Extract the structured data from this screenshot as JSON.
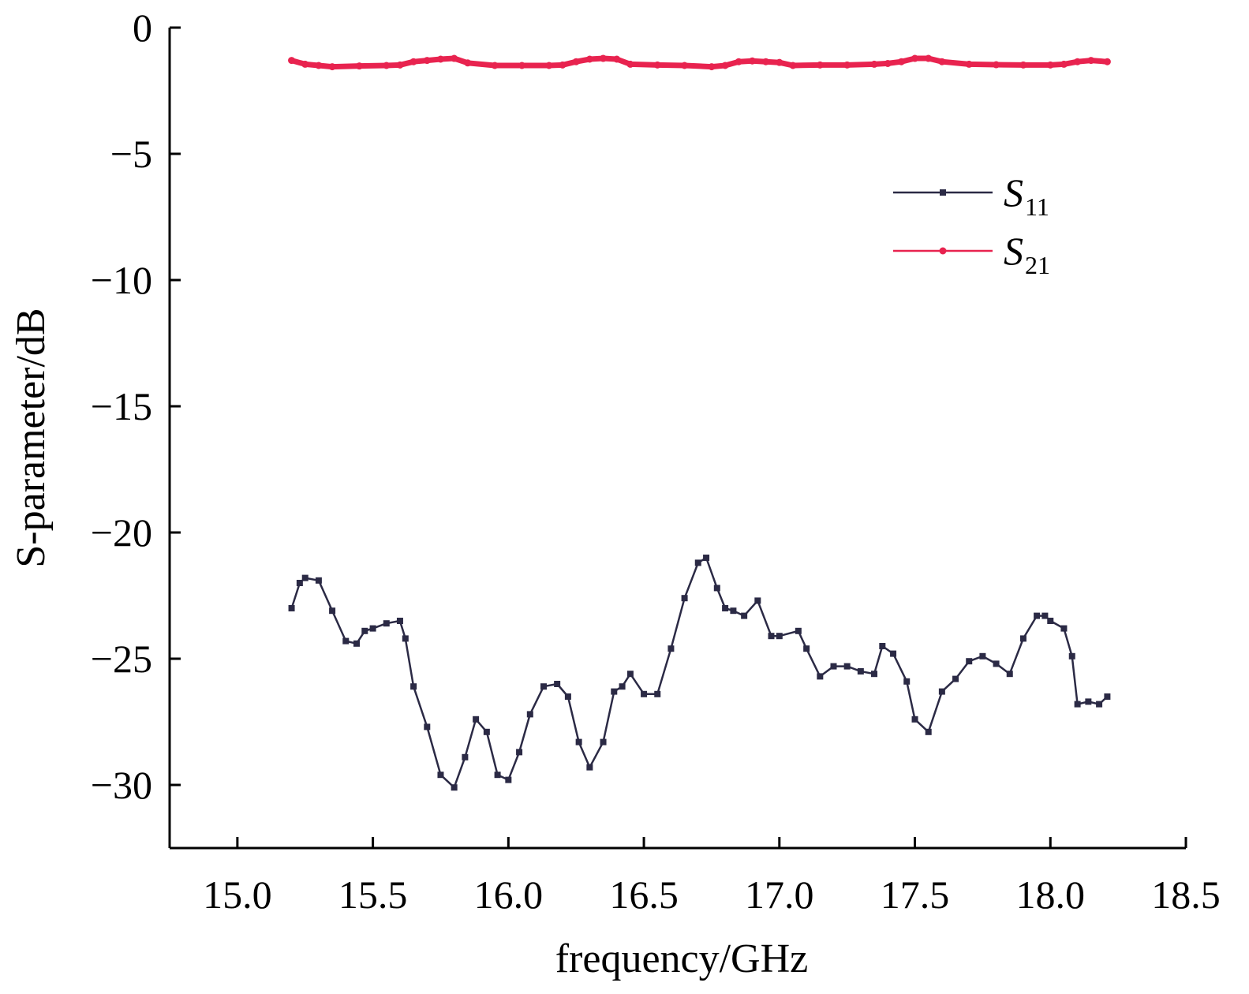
{
  "chart_data": {
    "type": "line",
    "xlabel": "frequency/GHz",
    "ylabel": "S-parameter/dB",
    "xlim": [
      14.75,
      18.5
    ],
    "ylim": [
      -32.5,
      0
    ],
    "xticks": [
      "15.0",
      "15.5",
      "16.0",
      "16.5",
      "17.0",
      "17.5",
      "18.0",
      "18.5"
    ],
    "yticks": [
      "0",
      "−5",
      "−10",
      "−15",
      "−20",
      "−25",
      "−30"
    ],
    "legend_position": "top-right",
    "grid": false,
    "series": [
      {
        "name": "S11",
        "label_main": "S",
        "label_sub": "11",
        "color": "#2b2a45",
        "marker": "square",
        "x": [
          15.2,
          15.23,
          15.25,
          15.3,
          15.35,
          15.4,
          15.44,
          15.47,
          15.5,
          15.55,
          15.6,
          15.62,
          15.65,
          15.7,
          15.75,
          15.8,
          15.84,
          15.88,
          15.92,
          15.96,
          16.0,
          16.04,
          16.08,
          16.13,
          16.18,
          16.22,
          16.26,
          16.3,
          16.35,
          16.39,
          16.42,
          16.45,
          16.5,
          16.55,
          16.6,
          16.65,
          16.7,
          16.73,
          16.77,
          16.8,
          16.83,
          16.87,
          16.92,
          16.97,
          17.0,
          17.07,
          17.1,
          17.15,
          17.2,
          17.25,
          17.3,
          17.35,
          17.38,
          17.42,
          17.47,
          17.5,
          17.55,
          17.6,
          17.65,
          17.7,
          17.75,
          17.8,
          17.85,
          17.9,
          17.95,
          17.98,
          18.0,
          18.05,
          18.08,
          18.1,
          18.14,
          18.18,
          18.21
        ],
        "y": [
          -23.0,
          -22.0,
          -21.8,
          -21.9,
          -23.1,
          -24.3,
          -24.4,
          -23.9,
          -23.8,
          -23.6,
          -23.5,
          -24.2,
          -26.1,
          -27.7,
          -29.6,
          -30.1,
          -28.9,
          -27.4,
          -27.9,
          -29.6,
          -29.8,
          -28.7,
          -27.2,
          -26.1,
          -26.0,
          -26.5,
          -28.3,
          -29.3,
          -28.3,
          -26.3,
          -26.1,
          -25.6,
          -26.4,
          -26.4,
          -24.6,
          -22.6,
          -21.2,
          -21.0,
          -22.2,
          -23.0,
          -23.1,
          -23.3,
          -22.7,
          -24.1,
          -24.1,
          -23.9,
          -24.6,
          -25.7,
          -25.3,
          -25.3,
          -25.5,
          -25.6,
          -24.5,
          -24.8,
          -25.9,
          -27.4,
          -27.9,
          -26.3,
          -25.8,
          -25.1,
          -24.9,
          -25.2,
          -25.6,
          -24.2,
          -23.3,
          -23.3,
          -23.5,
          -23.8,
          -24.9,
          -26.8,
          -26.7,
          -26.8,
          -26.5
        ]
      },
      {
        "name": "S21",
        "label_main": "S",
        "label_sub": "21",
        "color": "#e8234f",
        "marker": "circle",
        "x": [
          15.2,
          15.25,
          15.3,
          15.35,
          15.45,
          15.55,
          15.6,
          15.65,
          15.7,
          15.75,
          15.8,
          15.85,
          15.95,
          16.05,
          16.15,
          16.2,
          16.25,
          16.3,
          16.35,
          16.4,
          16.45,
          16.55,
          16.65,
          16.75,
          16.8,
          16.85,
          16.9,
          16.95,
          17.0,
          17.05,
          17.15,
          17.25,
          17.35,
          17.4,
          17.45,
          17.5,
          17.55,
          17.6,
          17.7,
          17.8,
          17.9,
          18.0,
          18.05,
          18.1,
          18.15,
          18.21
        ],
        "y": [
          -1.3,
          -1.45,
          -1.5,
          -1.55,
          -1.52,
          -1.5,
          -1.48,
          -1.35,
          -1.3,
          -1.25,
          -1.22,
          -1.4,
          -1.5,
          -1.5,
          -1.5,
          -1.48,
          -1.35,
          -1.25,
          -1.22,
          -1.25,
          -1.45,
          -1.48,
          -1.5,
          -1.55,
          -1.5,
          -1.35,
          -1.32,
          -1.35,
          -1.38,
          -1.5,
          -1.48,
          -1.48,
          -1.45,
          -1.42,
          -1.35,
          -1.22,
          -1.22,
          -1.35,
          -1.45,
          -1.47,
          -1.48,
          -1.48,
          -1.45,
          -1.35,
          -1.3,
          -1.35
        ]
      }
    ]
  }
}
